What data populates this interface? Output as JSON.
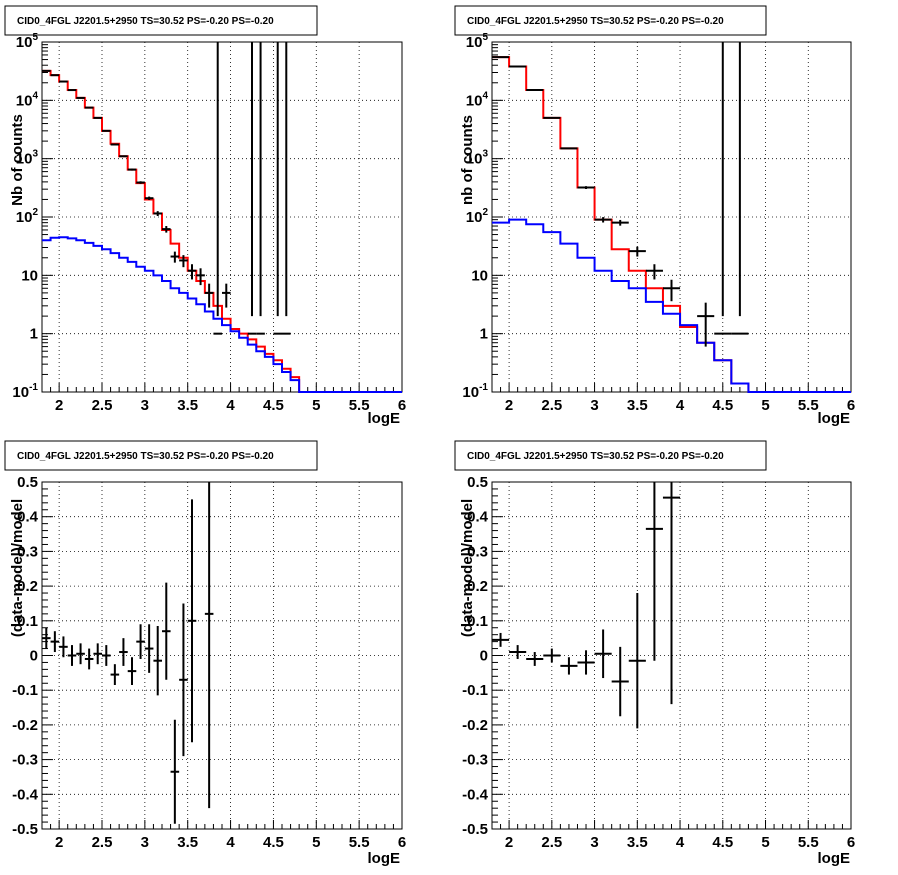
{
  "colors": {
    "data": "#000000",
    "total_model": "#ff0000",
    "component_model": "#0000ff",
    "grid": "#000000"
  },
  "chart_data": [
    {
      "type": "line",
      "title": "CID0_4FGL J2201.5+2950 TS=30.52 PS=-0.20 PS=-0.20",
      "xlabel": "logE",
      "ylabel": "Nb of counts",
      "xlim": [
        1.8,
        6.0
      ],
      "ylim": [
        0.1,
        100000
      ],
      "yscale": "log",
      "grid": true,
      "x_ticks": [
        "2",
        "2.5",
        "3",
        "3.5",
        "4",
        "4.5",
        "5",
        "5.5",
        "6"
      ],
      "y_ticks": [
        "10-1",
        "1",
        "10",
        "102",
        "103",
        "104",
        "105"
      ],
      "series": [
        {
          "bin_edges": [
            1.8,
            1.9,
            2.0,
            2.1,
            2.2,
            2.3,
            2.4,
            2.5,
            2.6,
            2.7,
            2.8,
            2.9,
            3.0,
            3.1,
            3.2,
            3.3,
            3.4,
            3.5,
            3.6,
            3.7,
            3.8,
            3.9,
            4.0,
            4.1,
            4.2,
            4.3,
            4.4,
            4.5,
            4.6,
            4.7,
            4.8,
            5.0,
            6.0
          ],
          "values": [
            32000,
            27000,
            21000,
            15000,
            11000,
            7500,
            5000,
            3000,
            1800,
            1100,
            650,
            380,
            200,
            115,
            60,
            35,
            20,
            12,
            8,
            5,
            3,
            1.8,
            1.2,
            1.0,
            0.8,
            0.6,
            0.45,
            0.35,
            0.25,
            0.18,
            0.1,
            0.1
          ]
        },
        {
          "bin_edges": [
            1.8,
            1.9,
            2.0,
            2.1,
            2.2,
            2.3,
            2.4,
            2.5,
            2.6,
            2.7,
            2.8,
            2.9,
            3.0,
            3.1,
            3.2,
            3.3,
            3.4,
            3.5,
            3.6,
            3.7,
            3.8,
            3.9,
            4.0,
            4.1,
            4.2,
            4.3,
            4.4,
            4.5,
            4.6,
            4.7,
            4.8,
            5.0,
            6.0
          ],
          "values": [
            40,
            44,
            45,
            43,
            40,
            36,
            32,
            28,
            24,
            20,
            17,
            14,
            12,
            10,
            8,
            6,
            5,
            4,
            3.2,
            2.4,
            1.8,
            1.4,
            1.1,
            0.85,
            0.65,
            0.5,
            0.4,
            0.3,
            0.22,
            0.16,
            0.1,
            0.1
          ]
        }
      ],
      "points": [
        {
          "x": 1.85,
          "y": 32000,
          "err_lo": 180,
          "err_hi": 180
        },
        {
          "x": 1.95,
          "y": 27000,
          "err_lo": 160,
          "err_hi": 160
        },
        {
          "x": 2.05,
          "y": 21000,
          "err_lo": 150,
          "err_hi": 150
        },
        {
          "x": 2.15,
          "y": 15000,
          "err_lo": 120,
          "err_hi": 120
        },
        {
          "x": 2.25,
          "y": 11000,
          "err_lo": 100,
          "err_hi": 100
        },
        {
          "x": 2.35,
          "y": 7500,
          "err_lo": 90,
          "err_hi": 90
        },
        {
          "x": 2.45,
          "y": 5000,
          "err_lo": 70,
          "err_hi": 70
        },
        {
          "x": 2.55,
          "y": 3000,
          "err_lo": 55,
          "err_hi": 55
        },
        {
          "x": 2.65,
          "y": 1750,
          "err_lo": 42,
          "err_hi": 42
        },
        {
          "x": 2.75,
          "y": 1100,
          "err_lo": 33,
          "err_hi": 33
        },
        {
          "x": 2.85,
          "y": 650,
          "err_lo": 25,
          "err_hi": 25
        },
        {
          "x": 2.95,
          "y": 390,
          "err_lo": 20,
          "err_hi": 20
        },
        {
          "x": 3.05,
          "y": 210,
          "err_lo": 14,
          "err_hi": 14
        },
        {
          "x": 3.15,
          "y": 115,
          "err_lo": 11,
          "err_hi": 11
        },
        {
          "x": 3.25,
          "y": 62,
          "err_lo": 8,
          "err_hi": 8
        },
        {
          "x": 3.35,
          "y": 21,
          "err_lo": 4.5,
          "err_hi": 4.5
        },
        {
          "x": 3.45,
          "y": 18,
          "err_lo": 4.2,
          "err_hi": 4.2
        },
        {
          "x": 3.55,
          "y": 12,
          "err_lo": 3.5,
          "err_hi": 3.5
        },
        {
          "x": 3.65,
          "y": 10,
          "err_lo": 3.2,
          "err_hi": 3.2
        },
        {
          "x": 3.75,
          "y": 5,
          "err_lo": 2.2,
          "err_hi": 2.2
        },
        {
          "x": 3.85,
          "y": 1,
          "err_lo": 1,
          "err_hi": 1
        },
        {
          "x": 3.95,
          "y": 5,
          "err_lo": 2.2,
          "err_hi": 2.2
        },
        {
          "x": 4.25,
          "y": 1,
          "err_lo": 1,
          "err_hi": 1
        },
        {
          "x": 4.35,
          "y": 1,
          "err_lo": 1,
          "err_hi": 1
        },
        {
          "x": 4.55,
          "y": 1,
          "err_lo": 1,
          "err_hi": 1
        },
        {
          "x": 4.65,
          "y": 1,
          "err_lo": 1,
          "err_hi": 1
        }
      ]
    },
    {
      "type": "line",
      "title": "CID0_4FGL J2201.5+2950 TS=30.52 PS=-0.20 PS=-0.20",
      "xlabel": "logE",
      "ylabel": "nb of counts",
      "xlim": [
        1.8,
        6.0
      ],
      "ylim": [
        0.1,
        100000
      ],
      "yscale": "log",
      "grid": true,
      "x_ticks": [
        "2",
        "2.5",
        "3",
        "3.5",
        "4",
        "4.5",
        "5",
        "5.5",
        "6"
      ],
      "y_ticks": [
        "10-1",
        "1",
        "10",
        "102",
        "103",
        "104",
        "105"
      ],
      "series": [
        {
          "bin_edges": [
            1.8,
            2.0,
            2.2,
            2.4,
            2.6,
            2.8,
            3.0,
            3.2,
            3.4,
            3.6,
            3.8,
            4.0,
            4.2,
            4.4,
            4.6,
            4.8,
            5.0,
            6.0
          ],
          "values": [
            55000,
            38000,
            15000,
            5000,
            1500,
            320,
            90,
            28,
            12,
            6,
            3,
            1.3,
            0.7,
            0.35,
            0.14,
            0.1,
            0.1
          ]
        },
        {
          "bin_edges": [
            1.8,
            2.0,
            2.2,
            2.4,
            2.6,
            2.8,
            3.0,
            3.2,
            3.4,
            3.6,
            3.8,
            4.0,
            4.2,
            4.4,
            4.6,
            4.8,
            5.0,
            6.0
          ],
          "values": [
            80,
            90,
            75,
            55,
            35,
            20,
            12,
            8,
            6,
            3.5,
            2.2,
            1.4,
            0.7,
            0.35,
            0.14,
            0.1,
            0.1
          ]
        }
      ],
      "points": [
        {
          "x": 1.9,
          "y": 55000,
          "err_lo": 230,
          "err_hi": 230
        },
        {
          "x": 2.1,
          "y": 38000,
          "err_lo": 195,
          "err_hi": 195
        },
        {
          "x": 2.3,
          "y": 15000,
          "err_lo": 120,
          "err_hi": 120
        },
        {
          "x": 2.5,
          "y": 5000,
          "err_lo": 70,
          "err_hi": 70
        },
        {
          "x": 2.7,
          "y": 1500,
          "err_lo": 38,
          "err_hi": 38
        },
        {
          "x": 2.9,
          "y": 320,
          "err_lo": 18,
          "err_hi": 18
        },
        {
          "x": 3.1,
          "y": 90,
          "err_lo": 9.5,
          "err_hi": 9.5
        },
        {
          "x": 3.3,
          "y": 80,
          "err_lo": 9,
          "err_hi": 9
        },
        {
          "x": 3.5,
          "y": 26,
          "err_lo": 5,
          "err_hi": 5
        },
        {
          "x": 3.7,
          "y": 12,
          "err_lo": 3.5,
          "err_hi": 3.5
        },
        {
          "x": 3.9,
          "y": 6,
          "err_lo": 2.4,
          "err_hi": 2.4
        },
        {
          "x": 4.3,
          "y": 2,
          "err_lo": 1.4,
          "err_hi": 1.4
        },
        {
          "x": 4.5,
          "y": 1,
          "err_lo": 1,
          "err_hi": 1
        },
        {
          "x": 4.7,
          "y": 1,
          "err_lo": 1,
          "err_hi": 1
        }
      ]
    },
    {
      "type": "scatter",
      "title": "CID0_4FGL J2201.5+2950 TS=30.52 PS=-0.20 PS=-0.20",
      "xlabel": "logE",
      "ylabel": "(data-model)/model",
      "xlim": [
        1.8,
        6.0
      ],
      "ylim": [
        -0.5,
        0.5
      ],
      "grid": true,
      "x_ticks": [
        "2",
        "2.5",
        "3",
        "3.5",
        "4",
        "4.5",
        "5",
        "5.5",
        "6"
      ],
      "y_ticks": [
        "-0.5",
        "-0.4",
        "-0.3",
        "-0.2",
        "-0.1",
        "0",
        "0.1",
        "0.2",
        "0.3",
        "0.4",
        "0.5"
      ],
      "points": [
        {
          "x": 1.85,
          "y": 0.05,
          "err": 0.03
        },
        {
          "x": 1.95,
          "y": 0.04,
          "err": 0.03
        },
        {
          "x": 2.05,
          "y": 0.025,
          "err": 0.03
        },
        {
          "x": 2.15,
          "y": 0.0,
          "err": 0.03
        },
        {
          "x": 2.25,
          "y": 0.005,
          "err": 0.03
        },
        {
          "x": 2.35,
          "y": -0.01,
          "err": 0.03
        },
        {
          "x": 2.45,
          "y": 0.005,
          "err": 0.03
        },
        {
          "x": 2.55,
          "y": 0.0,
          "err": 0.03
        },
        {
          "x": 2.65,
          "y": -0.055,
          "err": 0.03
        },
        {
          "x": 2.75,
          "y": 0.01,
          "err": 0.04
        },
        {
          "x": 2.85,
          "y": -0.045,
          "err": 0.04
        },
        {
          "x": 2.95,
          "y": 0.04,
          "err": 0.05
        },
        {
          "x": 3.05,
          "y": 0.02,
          "err": 0.07
        },
        {
          "x": 3.15,
          "y": -0.015,
          "err": 0.1
        },
        {
          "x": 3.25,
          "y": 0.07,
          "err": 0.14
        },
        {
          "x": 3.35,
          "y": -0.335,
          "err": 0.15
        },
        {
          "x": 3.45,
          "y": -0.07,
          "err": 0.22
        },
        {
          "x": 3.55,
          "y": 0.1,
          "err": 0.35
        },
        {
          "x": 3.75,
          "y": 0.12,
          "err": 0.56
        }
      ]
    },
    {
      "type": "scatter",
      "title": "CID0_4FGL J2201.5+2950 TS=30.52 PS=-0.20 PS=-0.20",
      "xlabel": "logE",
      "ylabel": "(data-model)/model",
      "xlim": [
        1.8,
        6.0
      ],
      "ylim": [
        -0.5,
        0.5
      ],
      "grid": true,
      "x_ticks": [
        "2",
        "2.5",
        "3",
        "3.5",
        "4",
        "4.5",
        "5",
        "5.5",
        "6"
      ],
      "y_ticks": [
        "-0.5",
        "-0.4",
        "-0.3",
        "-0.2",
        "-0.1",
        "0",
        "0.1",
        "0.2",
        "0.3",
        "0.4",
        "0.5"
      ],
      "points": [
        {
          "x": 1.9,
          "y": 0.045,
          "err": 0.02
        },
        {
          "x": 2.1,
          "y": 0.01,
          "err": 0.02
        },
        {
          "x": 2.3,
          "y": -0.01,
          "err": 0.02
        },
        {
          "x": 2.5,
          "y": 0.0,
          "err": 0.02
        },
        {
          "x": 2.7,
          "y": -0.03,
          "err": 0.025
        },
        {
          "x": 2.9,
          "y": -0.02,
          "err": 0.035
        },
        {
          "x": 3.1,
          "y": 0.005,
          "err": 0.07
        },
        {
          "x": 3.3,
          "y": -0.075,
          "err": 0.1
        },
        {
          "x": 3.5,
          "y": -0.015,
          "err": 0.195
        },
        {
          "x": 3.7,
          "y": 0.365,
          "err": 0.38
        },
        {
          "x": 3.9,
          "y": 0.455,
          "err": 0.595
        }
      ]
    }
  ]
}
